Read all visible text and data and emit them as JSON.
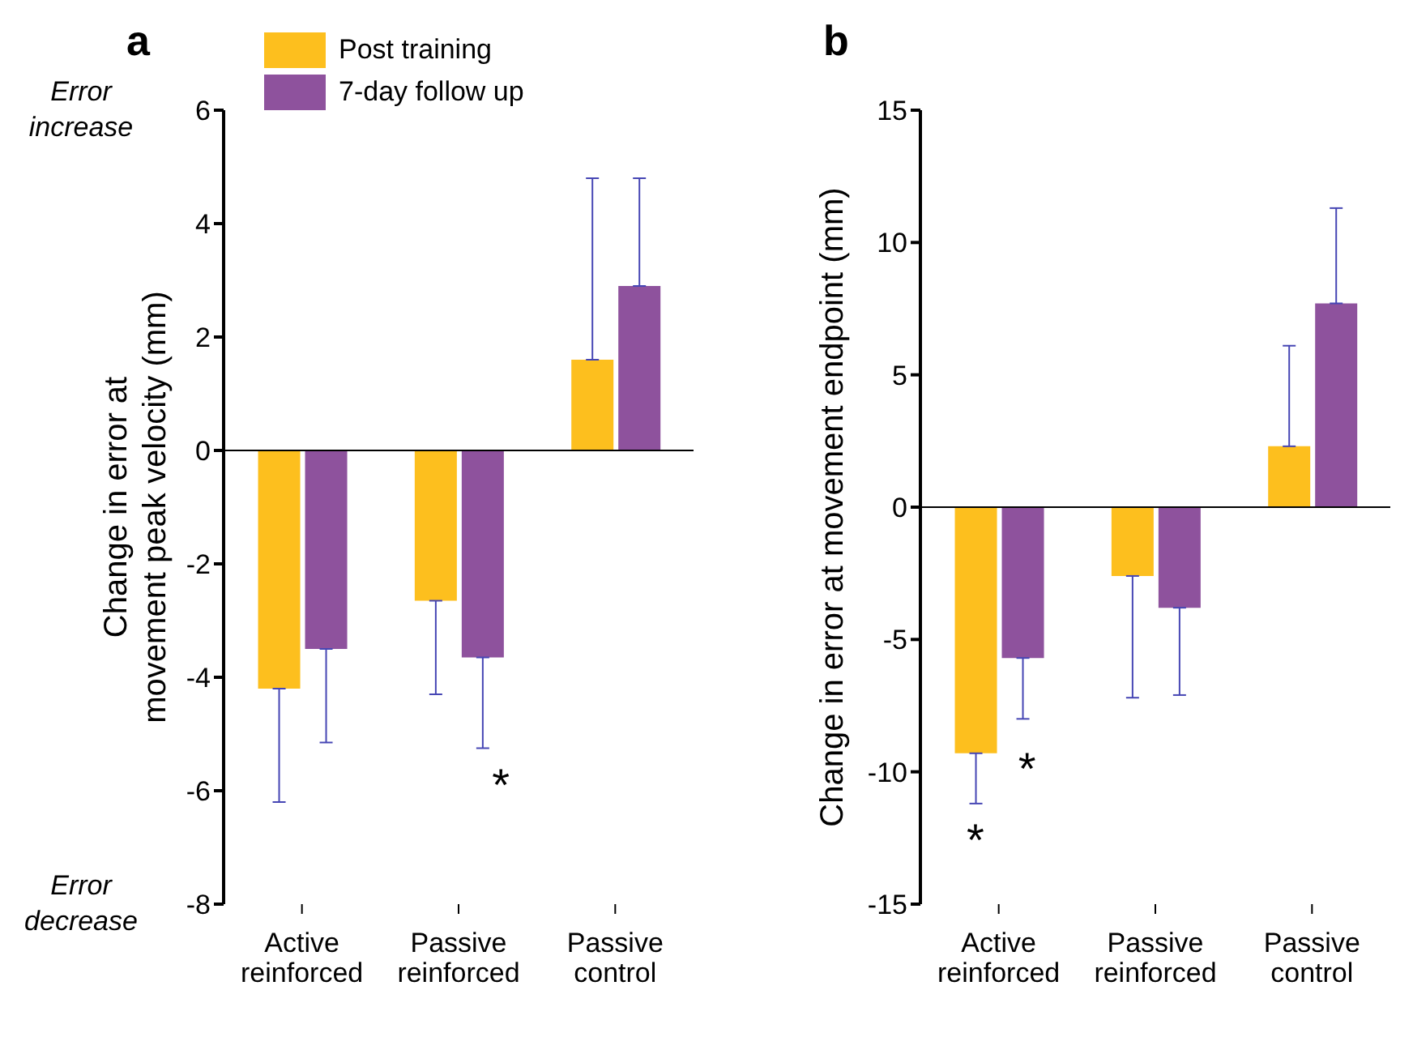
{
  "chart_data": [
    {
      "type": "bar",
      "title": "a",
      "ylabel": "Change in error at movement peak velocity (mm)",
      "categories": [
        "Active reinforced",
        "Passive reinforced",
        "Passive control"
      ],
      "series": [
        {
          "name": "Post training",
          "color": "#fdbf1e",
          "values": [
            -4.2,
            -2.65,
            1.6
          ],
          "errors": [
            [
              -6.2,
              -4.2
            ],
            [
              -4.3,
              -2.65
            ],
            [
              1.6,
              4.8
            ]
          ]
        },
        {
          "name": "7-day follow up",
          "color": "#8e529d",
          "values": [
            -3.5,
            -3.65,
            2.9
          ],
          "errors": [
            [
              -5.15,
              -3.5
            ],
            [
              -5.25,
              -3.65
            ],
            [
              2.9,
              4.8
            ]
          ]
        }
      ],
      "ylim": [
        -8,
        6
      ],
      "yticks": [
        -8,
        -6,
        -4,
        -2,
        0,
        2,
        4,
        6
      ],
      "legend": "top left",
      "annotations": [
        "Error increase",
        "Error decrease",
        "*"
      ]
    },
    {
      "type": "bar",
      "title": "b",
      "ylabel": "Change in error at movement endpoint (mm)",
      "categories": [
        "Active reinforced",
        "Passive reinforced",
        "Passive control"
      ],
      "series": [
        {
          "color": "#fdbf1e",
          "values": [
            -9.3,
            -2.6,
            2.3
          ],
          "errors": [
            [
              -11.2,
              -9.3
            ],
            [
              -7.2,
              -2.6
            ],
            [
              2.3,
              6.1
            ]
          ]
        },
        {
          "color": "#8e529d",
          "values": [
            -5.7,
            -3.8,
            7.7
          ],
          "errors": [
            [
              -8,
              -5.7
            ],
            [
              -7.1,
              -3.8
            ],
            [
              7.7,
              11.3
            ]
          ]
        }
      ],
      "ylim": [
        -15,
        15
      ],
      "yticks": [
        -15,
        -10,
        -5,
        0,
        5,
        10,
        15
      ],
      "annotations": [
        "*",
        "*"
      ]
    }
  ]
}
